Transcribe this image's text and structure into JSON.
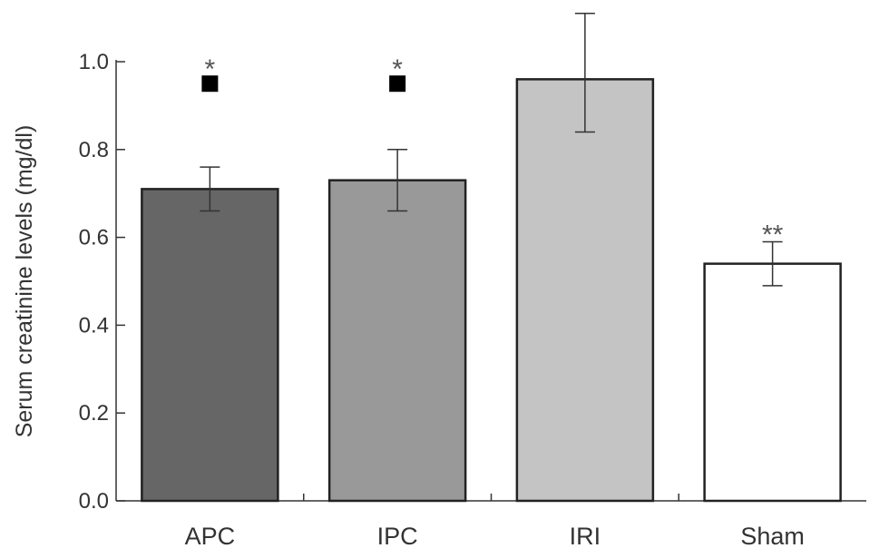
{
  "chart_data": {
    "type": "bar",
    "ylabel": "Serum creatinine levels (mg/dl)",
    "ylim": [
      0,
      1.0
    ],
    "yticks": [
      "0.0",
      "0.2",
      "0.4",
      "0.6",
      "0.8",
      "1.0"
    ],
    "categories": [
      "APC",
      "IPC",
      "IRI",
      "Sham"
    ],
    "values": [
      0.71,
      0.73,
      0.96,
      0.54
    ],
    "error_low": [
      0.66,
      0.66,
      0.84,
      0.49
    ],
    "error_high": [
      0.76,
      0.8,
      1.11,
      0.59
    ],
    "bar_colors": [
      "#666666",
      "#999999",
      "#c4c4c4",
      "#ffffff"
    ],
    "significance": [
      "*",
      "*",
      "",
      "**"
    ],
    "square_marker": [
      true,
      true,
      false,
      false
    ],
    "square_marker_value": 0.95,
    "grid": false
  }
}
